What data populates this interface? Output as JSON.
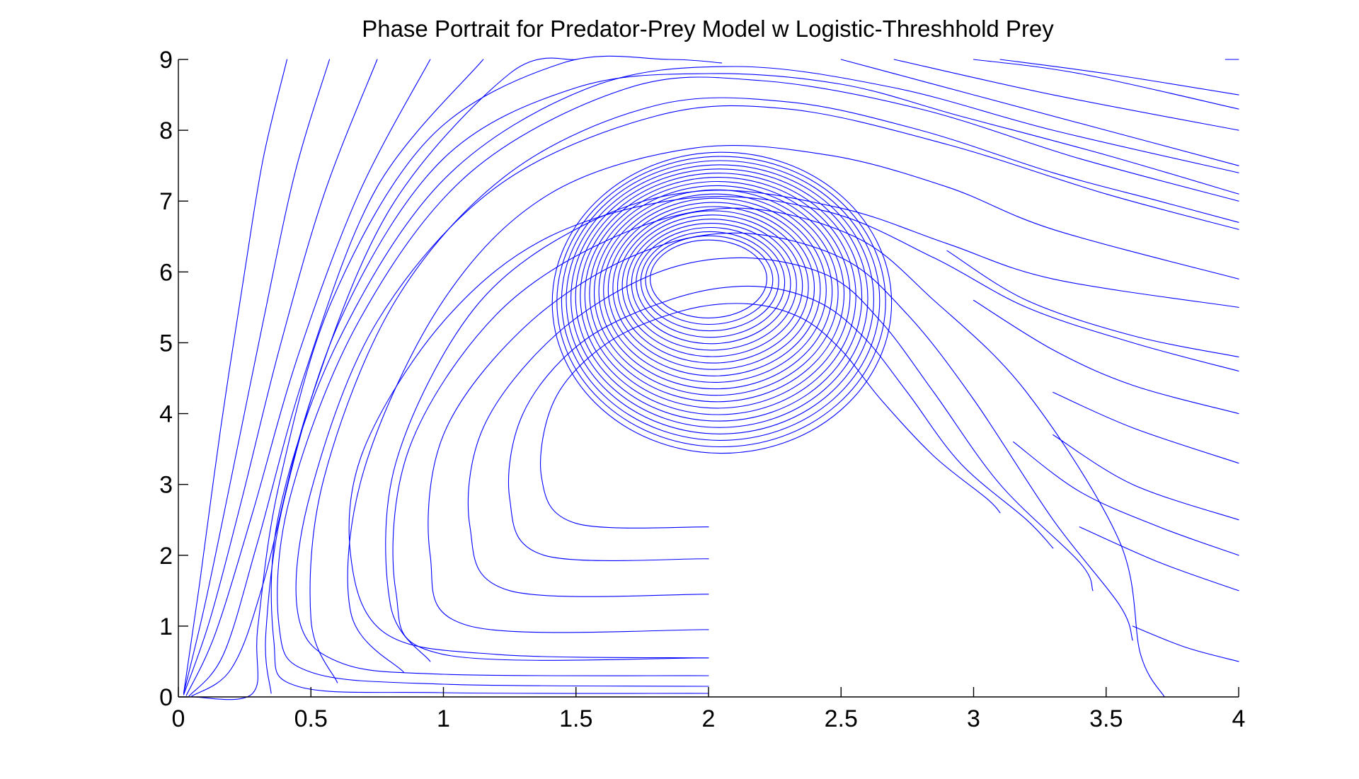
{
  "chart_data": {
    "type": "line",
    "title": "Phase Portrait for Predator-Prey Model w Logistic-Threshhold Prey",
    "xlabel": "",
    "ylabel": "",
    "xlim": [
      0,
      4
    ],
    "ylim": [
      0,
      9
    ],
    "x_ticks": [
      "0",
      "0.5",
      "1",
      "1.5",
      "2",
      "2.5",
      "3",
      "3.5",
      "4"
    ],
    "y_ticks": [
      "0",
      "1",
      "2",
      "3",
      "4",
      "5",
      "6",
      "7",
      "8",
      "9"
    ],
    "x_tick_values": [
      0,
      0.5,
      1,
      1.5,
      2,
      2.5,
      3,
      3.5,
      4
    ],
    "y_tick_values": [
      0,
      1,
      2,
      3,
      4,
      5,
      6,
      7,
      8,
      9
    ],
    "grid": false,
    "legend": "none",
    "line_color": "#0000ff",
    "equilibria": {
      "center": [
        2.0,
        5.9
      ],
      "prey_carrying_capacity": [
        3.73,
        0
      ]
    },
    "series": [
      {
        "points": [
          [
            0.02,
            0.05
          ],
          [
            0.08,
            1.6
          ],
          [
            0.16,
            3.8
          ],
          [
            0.25,
            6.0
          ],
          [
            0.32,
            7.6
          ],
          [
            0.41,
            9.0
          ]
        ]
      },
      {
        "points": [
          [
            0.02,
            0.05
          ],
          [
            0.1,
            1.3
          ],
          [
            0.2,
            3.1
          ],
          [
            0.32,
            5.3
          ],
          [
            0.44,
            7.4
          ],
          [
            0.57,
            9.0
          ]
        ]
      },
      {
        "points": [
          [
            0.02,
            0.03
          ],
          [
            0.12,
            1.1
          ],
          [
            0.24,
            2.8
          ],
          [
            0.38,
            4.9
          ],
          [
            0.55,
            7.1
          ],
          [
            0.75,
            9.0
          ]
        ]
      },
      {
        "points": [
          [
            0.03,
            0.02
          ],
          [
            0.14,
            0.9
          ],
          [
            0.28,
            2.6
          ],
          [
            0.45,
            4.8
          ],
          [
            0.68,
            7.1
          ],
          [
            0.95,
            9.0
          ]
        ]
      },
      {
        "points": [
          [
            0.04,
            0.01
          ],
          [
            0.17,
            0.6
          ],
          [
            0.3,
            2.2
          ],
          [
            0.48,
            4.6
          ],
          [
            0.75,
            7.2
          ],
          [
            1.15,
            9.0
          ]
        ]
      },
      {
        "points": [
          [
            0.05,
            0.01
          ],
          [
            0.2,
            0.4
          ],
          [
            0.32,
            1.6
          ],
          [
            0.5,
            4.2
          ],
          [
            0.8,
            6.9
          ],
          [
            1.25,
            8.8
          ],
          [
            1.5,
            9.0
          ]
        ]
      },
      {
        "points": [
          [
            0.05,
            0.0
          ],
          [
            0.28,
            0.05
          ],
          [
            0.3,
            1.0
          ],
          [
            0.38,
            3.0
          ],
          [
            0.58,
            5.6
          ],
          [
            0.95,
            7.9
          ],
          [
            1.45,
            8.95
          ],
          [
            1.85,
            9.0
          ],
          [
            2.05,
            8.95
          ]
        ]
      },
      {
        "points": [
          [
            0.35,
            0.05
          ],
          [
            0.33,
            0.9
          ],
          [
            0.4,
            2.8
          ],
          [
            0.62,
            5.4
          ],
          [
            1.0,
            7.6
          ],
          [
            1.5,
            8.6
          ],
          [
            2.0,
            8.8
          ],
          [
            2.5,
            8.65
          ],
          [
            2.95,
            8.2
          ],
          [
            3.5,
            7.65
          ],
          [
            4.0,
            7.1
          ]
        ]
      },
      {
        "points": [
          [
            0.6,
            0.2
          ],
          [
            0.5,
            1.1
          ],
          [
            0.55,
            3.1
          ],
          [
            0.82,
            5.6
          ],
          [
            1.25,
            7.4
          ],
          [
            1.8,
            8.35
          ],
          [
            2.3,
            8.4
          ],
          [
            2.8,
            8.0
          ],
          [
            3.3,
            7.4
          ],
          [
            3.7,
            7.0
          ],
          [
            4.0,
            6.7
          ]
        ]
      },
      {
        "points": [
          [
            0.85,
            0.35
          ],
          [
            0.65,
            1.2
          ],
          [
            0.7,
            3.2
          ],
          [
            1.0,
            5.6
          ],
          [
            1.4,
            7.1
          ],
          [
            1.95,
            7.75
          ],
          [
            2.45,
            7.65
          ],
          [
            2.9,
            7.2
          ],
          [
            3.3,
            6.6
          ],
          [
            4.0,
            5.9
          ]
        ]
      },
      {
        "points": [
          [
            0.95,
            0.5
          ],
          [
            0.8,
            1.3
          ],
          [
            0.82,
            3.3
          ],
          [
            1.12,
            5.5
          ],
          [
            1.55,
            6.7
          ],
          [
            2.0,
            7.15
          ],
          [
            2.5,
            6.9
          ],
          [
            2.9,
            6.4
          ],
          [
            3.3,
            5.9
          ],
          [
            4.0,
            5.5
          ]
        ]
      },
      {
        "points": [
          [
            2.0,
            0.55
          ],
          [
            1.0,
            0.6
          ],
          [
            0.82,
            1.5
          ],
          [
            0.87,
            3.5
          ],
          [
            1.2,
            5.4
          ],
          [
            1.65,
            6.5
          ],
          [
            2.1,
            6.9
          ],
          [
            2.55,
            6.5
          ],
          [
            2.85,
            5.6
          ],
          [
            3.2,
            4.3
          ],
          [
            3.55,
            2.2
          ],
          [
            3.63,
            0.6
          ],
          [
            3.72,
            0.0
          ]
        ]
      },
      {
        "points": [
          [
            2.0,
            0.95
          ],
          [
            1.1,
            1.0
          ],
          [
            0.95,
            2.0
          ],
          [
            1.0,
            3.7
          ],
          [
            1.3,
            5.2
          ],
          [
            1.7,
            6.2
          ],
          [
            2.1,
            6.55
          ],
          [
            2.5,
            6.2
          ],
          [
            2.75,
            5.4
          ],
          [
            3.0,
            4.2
          ],
          [
            3.3,
            2.5
          ],
          [
            3.55,
            1.3
          ],
          [
            3.6,
            0.8
          ]
        ]
      },
      {
        "points": [
          [
            2.0,
            1.45
          ],
          [
            1.25,
            1.5
          ],
          [
            1.1,
            2.4
          ],
          [
            1.15,
            3.8
          ],
          [
            1.42,
            5.1
          ],
          [
            1.78,
            5.95
          ],
          [
            2.12,
            6.2
          ],
          [
            2.45,
            5.95
          ],
          [
            2.65,
            5.3
          ],
          [
            2.85,
            4.3
          ],
          [
            3.1,
            3.0
          ],
          [
            3.4,
            1.9
          ],
          [
            3.45,
            1.5
          ]
        ]
      },
      {
        "points": [
          [
            2.0,
            1.95
          ],
          [
            1.38,
            2.0
          ],
          [
            1.25,
            2.8
          ],
          [
            1.3,
            4.0
          ],
          [
            1.52,
            5.0
          ],
          [
            1.85,
            5.6
          ],
          [
            2.15,
            5.8
          ],
          [
            2.4,
            5.6
          ],
          [
            2.58,
            5.1
          ],
          [
            2.75,
            4.3
          ],
          [
            2.95,
            3.3
          ],
          [
            3.2,
            2.5
          ],
          [
            3.3,
            2.1
          ]
        ]
      },
      {
        "points": [
          [
            2.0,
            2.4
          ],
          [
            1.5,
            2.45
          ],
          [
            1.37,
            3.1
          ],
          [
            1.42,
            4.2
          ],
          [
            1.62,
            5.0
          ],
          [
            1.9,
            5.45
          ],
          [
            2.15,
            5.55
          ],
          [
            2.35,
            5.35
          ],
          [
            2.5,
            4.9
          ],
          [
            2.65,
            4.2
          ],
          [
            2.85,
            3.4
          ],
          [
            3.05,
            2.8
          ],
          [
            3.1,
            2.6
          ]
        ]
      },
      {
        "points": [
          [
            2.0,
            0.55
          ],
          [
            1.2,
            0.6
          ],
          [
            0.78,
            0.9
          ],
          [
            0.65,
            2.0
          ],
          [
            0.7,
            3.5
          ],
          [
            1.0,
            5.3
          ],
          [
            1.4,
            6.5
          ],
          [
            1.95,
            7.05
          ],
          [
            2.45,
            6.85
          ],
          [
            2.85,
            6.2
          ],
          [
            3.2,
            5.5
          ],
          [
            3.6,
            5.0
          ],
          [
            4.0,
            4.6
          ]
        ]
      },
      {
        "points": [
          [
            4.0,
            8.5
          ],
          [
            3.5,
            8.8
          ],
          [
            3.1,
            9.0
          ]
        ]
      },
      {
        "points": [
          [
            4.0,
            8.3
          ],
          [
            3.4,
            8.8
          ],
          [
            3.0,
            9.0
          ]
        ]
      },
      {
        "points": [
          [
            4.0,
            8.0
          ],
          [
            3.3,
            8.5
          ],
          [
            2.7,
            9.0
          ]
        ]
      },
      {
        "points": [
          [
            4.0,
            7.5
          ],
          [
            3.5,
            8.0
          ],
          [
            3.0,
            8.5
          ],
          [
            2.5,
            9.0
          ]
        ]
      },
      {
        "points": [
          [
            4.0,
            9.0
          ],
          [
            3.95,
            9.0
          ]
        ]
      },
      {
        "points": [
          [
            4.0,
            0.5
          ],
          [
            3.8,
            0.7
          ],
          [
            3.6,
            1.0
          ]
        ]
      },
      {
        "points": [
          [
            4.0,
            1.5
          ],
          [
            3.7,
            1.9
          ],
          [
            3.4,
            2.4
          ]
        ]
      },
      {
        "points": [
          [
            4.0,
            2.0
          ],
          [
            3.7,
            2.4
          ],
          [
            3.4,
            2.9
          ],
          [
            3.15,
            3.6
          ]
        ]
      },
      {
        "points": [
          [
            4.0,
            2.5
          ],
          [
            3.6,
            3.0
          ],
          [
            3.3,
            3.7
          ]
        ]
      },
      {
        "points": [
          [
            4.0,
            3.3
          ],
          [
            3.6,
            3.8
          ],
          [
            3.3,
            4.3
          ]
        ]
      },
      {
        "points": [
          [
            4.0,
            4.0
          ],
          [
            3.6,
            4.4
          ],
          [
            3.3,
            4.9
          ],
          [
            3.0,
            5.6
          ]
        ]
      },
      {
        "points": [
          [
            4.0,
            4.8
          ],
          [
            3.6,
            5.1
          ],
          [
            3.2,
            5.6
          ],
          [
            2.9,
            6.3
          ]
        ]
      },
      {
        "points": [
          [
            2.0,
            0.3
          ],
          [
            1.0,
            0.32
          ],
          [
            0.6,
            0.5
          ],
          [
            0.45,
            1.2
          ],
          [
            0.5,
            2.9
          ],
          [
            0.75,
            5.3
          ],
          [
            1.2,
            7.2
          ],
          [
            1.8,
            8.2
          ],
          [
            2.3,
            8.3
          ],
          [
            2.9,
            7.8
          ],
          [
            3.5,
            7.1
          ],
          [
            4.0,
            6.6
          ]
        ]
      },
      {
        "points": [
          [
            2.0,
            0.15
          ],
          [
            1.0,
            0.18
          ],
          [
            0.5,
            0.35
          ],
          [
            0.38,
            1.0
          ],
          [
            0.42,
            2.8
          ],
          [
            0.68,
            5.3
          ],
          [
            1.1,
            7.4
          ],
          [
            1.7,
            8.6
          ],
          [
            2.2,
            8.7
          ],
          [
            2.8,
            8.3
          ],
          [
            3.4,
            7.6
          ],
          [
            4.0,
            7.0
          ]
        ]
      },
      {
        "points": [
          [
            2.0,
            0.05
          ],
          [
            1.0,
            0.06
          ],
          [
            0.45,
            0.15
          ],
          [
            0.36,
            0.8
          ],
          [
            0.38,
            2.6
          ],
          [
            0.6,
            5.0
          ],
          [
            1.0,
            7.3
          ],
          [
            1.55,
            8.6
          ],
          [
            2.1,
            8.9
          ],
          [
            2.7,
            8.6
          ],
          [
            3.3,
            8.0
          ],
          [
            4.0,
            7.4
          ]
        ]
      }
    ]
  }
}
